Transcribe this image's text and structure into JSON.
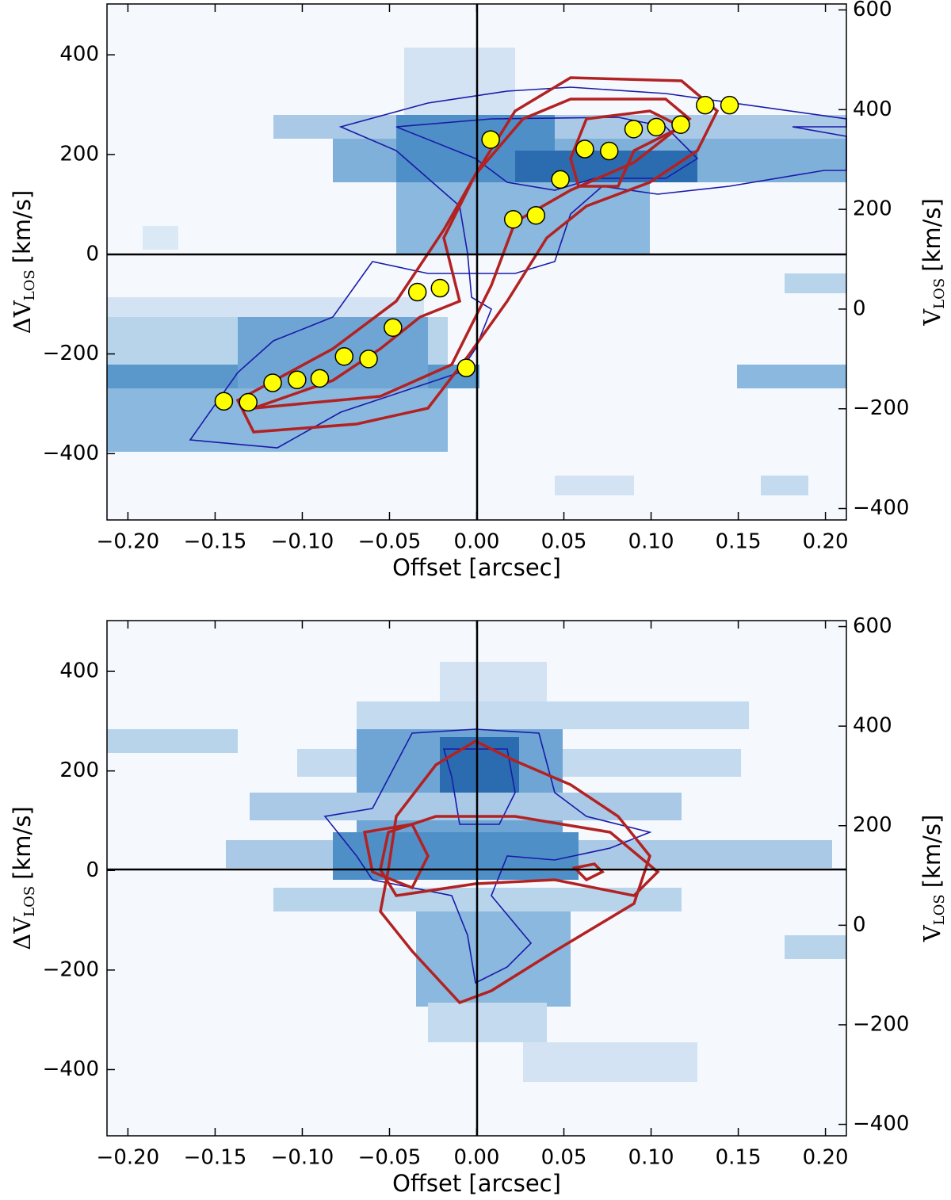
{
  "chart_data": [
    {
      "type": "scatter",
      "xlabel": "Offset [arcsec]",
      "ylabel_main": "ΔV",
      "ylabel_sub": "LOS",
      "ylabel_unit": "[km/s]",
      "y2label_main": "V",
      "y2label_sub": "LOS",
      "y2label_unit": "[km/s]",
      "xlim": [
        -0.212,
        0.212
      ],
      "ylim": [
        -533,
        502
      ],
      "y2lim": [
        -423,
        612
      ],
      "xticks": [
        {
          "value": -0.2,
          "label": "−0.20"
        },
        {
          "value": -0.15,
          "label": "−0.15"
        },
        {
          "value": -0.1,
          "label": "−0.10"
        },
        {
          "value": -0.05,
          "label": "−0.05"
        },
        {
          "value": 0,
          "label": "0.00"
        },
        {
          "value": 0.05,
          "label": "0.05"
        },
        {
          "value": 0.1,
          "label": "0.10"
        },
        {
          "value": 0.15,
          "label": "0.15"
        },
        {
          "value": 0.2,
          "label": "0.20"
        }
      ],
      "yticks": [
        {
          "value": -400,
          "label": "−400"
        },
        {
          "value": -200,
          "label": "−200"
        },
        0,
        200,
        400
      ],
      "y2ticks": [
        {
          "value": -400,
          "label": "−400"
        },
        {
          "value": -200,
          "label": "−200"
        },
        0,
        200,
        400,
        600
      ],
      "color": "#ffff00",
      "x": [
        -0.145,
        -0.131,
        -0.117,
        -0.103,
        -0.09,
        -0.076,
        -0.062,
        -0.048,
        -0.034,
        -0.021,
        -0.006,
        0.008,
        0.021,
        0.034,
        0.048,
        0.062,
        0.076,
        0.09,
        0.103,
        0.117,
        0.131,
        0.145
      ],
      "values": [
        -295,
        -297,
        -258,
        -252,
        -249,
        -205,
        -210,
        -147,
        -76,
        -68,
        -228,
        230,
        70,
        78,
        150,
        211,
        207,
        251,
        255,
        260,
        299,
        299
      ]
    },
    {
      "type": "scatter",
      "xlabel": "Offset [arcsec]",
      "ylabel_main": "ΔV",
      "ylabel_sub": "LOS",
      "ylabel_unit": "[km/s]",
      "y2label_main": "V",
      "y2label_sub": "LOS",
      "y2label_unit": "[km/s]",
      "xlim": [
        -0.212,
        0.212
      ],
      "ylim": [
        -533,
        502
      ],
      "y2lim": [
        -423,
        612
      ],
      "xticks": [
        {
          "value": -0.2,
          "label": "−0.20"
        },
        {
          "value": -0.15,
          "label": "−0.15"
        },
        {
          "value": -0.1,
          "label": "−0.10"
        },
        {
          "value": -0.05,
          "label": "−0.05"
        },
        {
          "value": 0,
          "label": "0.00"
        },
        {
          "value": 0.05,
          "label": "0.05"
        },
        {
          "value": 0.1,
          "label": "0.10"
        },
        {
          "value": 0.15,
          "label": "0.15"
        },
        {
          "value": 0.2,
          "label": "0.20"
        }
      ],
      "yticks": [
        {
          "value": -400,
          "label": "−400"
        },
        {
          "value": -200,
          "label": "−200"
        },
        0,
        200,
        400
      ],
      "y2ticks": [
        {
          "value": -400,
          "label": "−400"
        },
        {
          "value": -200,
          "label": "−200"
        },
        0,
        200,
        400,
        600
      ]
    }
  ]
}
